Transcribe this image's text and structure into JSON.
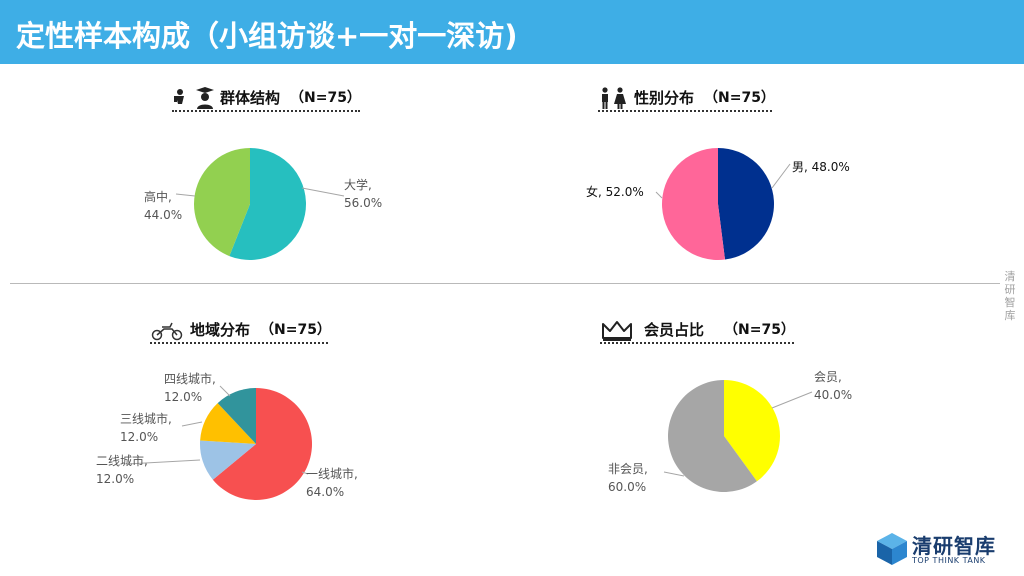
{
  "header": {
    "title": "定性样本构成（小组访谈+一对一深访)"
  },
  "side_text": "清研智库",
  "panels": [
    {
      "title": "群体结构",
      "n": "（N=75）",
      "icon": "student-graduate-icon",
      "slices": [
        {
          "label": "大学,",
          "pct": "56.0%",
          "color": "#26bfbf"
        },
        {
          "label": "高中,",
          "pct": "44.0%",
          "color": "#92d050"
        }
      ]
    },
    {
      "title": "性别分布",
      "n": "（N=75）",
      "icon": "man-woman-icon",
      "slices": [
        {
          "label": "男, 48.0%",
          "color": "#00308f"
        },
        {
          "label": "女, 52.0%",
          "color": "#ff6699"
        }
      ]
    },
    {
      "title": "地域分布",
      "n": "（N=75）",
      "icon": "motorbike-icon",
      "slices": [
        {
          "label": "一线城市,",
          "pct": "64.0%",
          "color": "#f75050"
        },
        {
          "label": "二线城市,",
          "pct": "12.0%",
          "color": "#9dc3e6"
        },
        {
          "label": "三线城市,",
          "pct": "12.0%",
          "color": "#ffc000"
        },
        {
          "label": "四线城市,",
          "pct": "12.0%",
          "color": "#31949c"
        }
      ]
    },
    {
      "title": "会员占比",
      "n": "（N=75）",
      "icon": "crown-icon",
      "slices": [
        {
          "label": "会员,",
          "pct": "40.0%",
          "color": "#ffff00"
        },
        {
          "label": "非会员,",
          "pct": "60.0%",
          "color": "#a6a6a6"
        }
      ]
    }
  ],
  "chart_data": [
    {
      "type": "pie",
      "title": "群体结构 （N=75）",
      "categories": [
        "大学",
        "高中"
      ],
      "values": [
        56.0,
        44.0
      ]
    },
    {
      "type": "pie",
      "title": "性别分布 （N=75）",
      "categories": [
        "男",
        "女"
      ],
      "values": [
        48.0,
        52.0
      ]
    },
    {
      "type": "pie",
      "title": "地域分布 （N=75）",
      "categories": [
        "一线城市",
        "二线城市",
        "三线城市",
        "四线城市"
      ],
      "values": [
        64.0,
        12.0,
        12.0,
        12.0
      ]
    },
    {
      "type": "pie",
      "title": "会员占比 （N=75）",
      "categories": [
        "会员",
        "非会员"
      ],
      "values": [
        40.0,
        60.0
      ]
    }
  ],
  "logo": {
    "name": "清研智库",
    "subtitle": "TOP THINK TANK"
  }
}
